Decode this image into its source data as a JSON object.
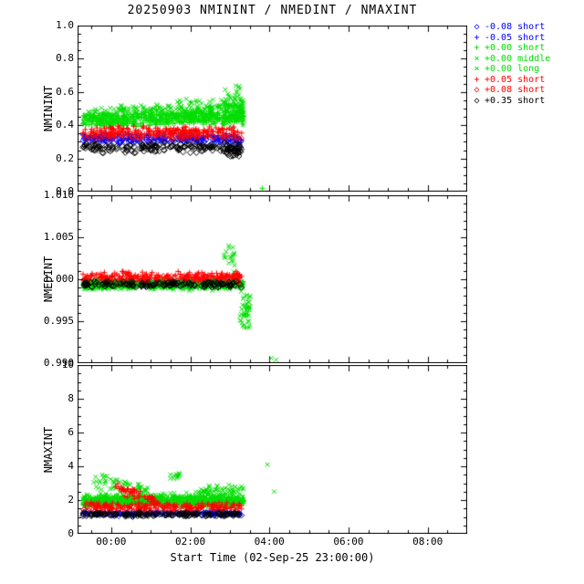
{
  "title": "20250903 NMININT / NMEDINT / NMAXINT",
  "xlabel": "Start Time (02-Sep-25 23:00:00)",
  "colors": {
    "blue": "#0000ff",
    "green": "#00dd00",
    "red": "#ff0000",
    "black": "#000000"
  },
  "series": [
    {
      "label": "-0.08 short",
      "color": "#0000ff",
      "marker": "diamond"
    },
    {
      "label": "-0.05 short",
      "color": "#0000ff",
      "marker": "plus"
    },
    {
      "label": "+0.00 short",
      "color": "#00dd00",
      "marker": "plus"
    },
    {
      "label": "+0.00 middle",
      "color": "#00dd00",
      "marker": "x"
    },
    {
      "label": "+0.00 long",
      "color": "#00dd00",
      "marker": "x"
    },
    {
      "label": "+0.05 short",
      "color": "#ff0000",
      "marker": "plus"
    },
    {
      "label": "+0.08 short",
      "color": "#ff0000",
      "marker": "diamond"
    },
    {
      "label": "+0.35 short",
      "color": "#000000",
      "marker": "diamond"
    }
  ],
  "xaxis": {
    "xlim": [
      -0.85,
      9.0
    ],
    "xminor_step": 0.5,
    "xticks": [
      {
        "v": 0,
        "label": "00:00"
      },
      {
        "v": 2,
        "label": "02:00"
      },
      {
        "v": 4,
        "label": "04:00"
      },
      {
        "v": 6,
        "label": "06:00"
      },
      {
        "v": 8,
        "label": "08:00"
      }
    ]
  },
  "chart_data": [
    {
      "type": "scatter",
      "ylabel": "NMININT",
      "ylim": [
        0.0,
        1.0
      ],
      "yminor_step": 0.05,
      "yticks": [
        {
          "v": 0.0,
          "label": "0.0"
        },
        {
          "v": 0.2,
          "label": "0.2"
        },
        {
          "v": 0.4,
          "label": "0.4"
        },
        {
          "v": 0.6,
          "label": "0.6"
        },
        {
          "v": 0.8,
          "label": "0.8"
        },
        {
          "v": 1.0,
          "label": "1.0"
        }
      ],
      "clusters": [
        {
          "s": 0,
          "n": 120,
          "x": [
            -0.72,
            3.3
          ],
          "y": [
            0.28,
            0.34
          ]
        },
        {
          "s": 1,
          "n": 140,
          "x": [
            -0.72,
            3.3
          ],
          "y": [
            0.3,
            0.36
          ]
        },
        {
          "s": 2,
          "n": 380,
          "x": [
            -0.72,
            3.35
          ],
          "y": [
            0.38,
            0.47
          ],
          "y2": [
            0.4,
            0.5
          ]
        },
        {
          "s": 3,
          "n": 260,
          "x": [
            -0.72,
            3.35
          ],
          "y": [
            0.38,
            0.51
          ],
          "y2": [
            0.42,
            0.57
          ]
        },
        {
          "s": 4,
          "n": 130,
          "x": [
            -0.72,
            3.35
          ],
          "y": [
            0.4,
            0.5
          ],
          "y2": [
            0.44,
            0.6
          ]
        },
        {
          "s": 3,
          "n": 60,
          "x": [
            2.85,
            3.38
          ],
          "y": [
            0.35,
            0.67
          ]
        },
        {
          "s": 5,
          "n": 170,
          "x": [
            -0.72,
            3.3
          ],
          "y": [
            0.33,
            0.4
          ]
        },
        {
          "s": 6,
          "n": 90,
          "x": [
            -0.72,
            3.3
          ],
          "y": [
            0.31,
            0.36
          ]
        },
        {
          "s": 7,
          "n": 170,
          "x": [
            -0.72,
            3.3
          ],
          "y": [
            0.23,
            0.3
          ]
        },
        {
          "s": 7,
          "n": 30,
          "x": [
            2.9,
            3.3
          ],
          "y": [
            0.2,
            0.28
          ]
        }
      ],
      "outliers": [
        {
          "s": 2,
          "x": 3.82,
          "y": 0.02
        }
      ]
    },
    {
      "type": "scatter",
      "ylabel": "NMEDINT",
      "ylim": [
        0.99,
        1.01
      ],
      "yminor_step": 0.001,
      "yticks": [
        {
          "v": 0.99,
          "label": "0.990"
        },
        {
          "v": 0.995,
          "label": "0.995"
        },
        {
          "v": 1.0,
          "label": "1.000"
        },
        {
          "v": 1.005,
          "label": "1.005"
        },
        {
          "v": 1.01,
          "label": "1.010"
        }
      ],
      "clusters": [
        {
          "s": 0,
          "n": 70,
          "x": [
            -0.72,
            3.3
          ],
          "y": [
            0.999,
            0.9998
          ]
        },
        {
          "s": 1,
          "n": 90,
          "x": [
            -0.72,
            3.3
          ],
          "y": [
            0.9992,
            1.0
          ]
        },
        {
          "s": 2,
          "n": 420,
          "x": [
            -0.72,
            3.35
          ],
          "y": [
            0.9988,
            1.0
          ]
        },
        {
          "s": 3,
          "n": 220,
          "x": [
            -0.72,
            3.35
          ],
          "y": [
            0.9985,
            1.0002
          ]
        },
        {
          "s": 4,
          "n": 100,
          "x": [
            -0.72,
            3.35
          ],
          "y": [
            0.9987,
            1.0
          ]
        },
        {
          "s": 3,
          "n": 18,
          "x": [
            2.85,
            3.12
          ],
          "y": [
            1.0,
            1.0045
          ]
        },
        {
          "s": 3,
          "n": 45,
          "x": [
            3.25,
            3.52
          ],
          "y": [
            0.9935,
            0.9988
          ]
        },
        {
          "s": 5,
          "n": 190,
          "x": [
            -0.72,
            3.3
          ],
          "y": [
            0.9996,
            1.001
          ]
        },
        {
          "s": 6,
          "n": 70,
          "x": [
            -0.72,
            3.3
          ],
          "y": [
            0.9995,
            1.0006
          ]
        },
        {
          "s": 7,
          "n": 150,
          "x": [
            -0.72,
            3.3
          ],
          "y": [
            0.999,
            0.9998
          ]
        }
      ],
      "outliers": [
        {
          "s": 4,
          "x": 4.05,
          "y": 0.9906
        },
        {
          "s": 4,
          "x": 4.17,
          "y": 0.9904
        }
      ]
    },
    {
      "type": "scatter",
      "ylabel": "NMAXINT",
      "ylim": [
        0,
        10
      ],
      "yminor_step": 0.5,
      "yticks": [
        {
          "v": 0,
          "label": "0"
        },
        {
          "v": 2,
          "label": "2"
        },
        {
          "v": 4,
          "label": "4"
        },
        {
          "v": 6,
          "label": "6"
        },
        {
          "v": 8,
          "label": "8"
        },
        {
          "v": 10,
          "label": "10"
        }
      ],
      "clusters": [
        {
          "s": 0,
          "n": 90,
          "x": [
            -0.72,
            3.3
          ],
          "y": [
            1.05,
            1.3
          ]
        },
        {
          "s": 1,
          "n": 110,
          "x": [
            -0.72,
            3.3
          ],
          "y": [
            1.1,
            1.35
          ]
        },
        {
          "s": 2,
          "n": 420,
          "x": [
            -0.72,
            3.35
          ],
          "y": [
            1.6,
            2.3
          ]
        },
        {
          "s": 3,
          "n": 220,
          "x": [
            -0.72,
            3.35
          ],
          "y": [
            1.5,
            2.5
          ]
        },
        {
          "s": 4,
          "n": 100,
          "x": [
            -0.72,
            3.35
          ],
          "y": [
            1.6,
            2.4
          ]
        },
        {
          "s": 3,
          "n": 55,
          "x": [
            -0.5,
            0.95
          ],
          "y": [
            2.5,
            3.9
          ],
          "y2": [
            2.2,
            3.0
          ]
        },
        {
          "s": 3,
          "n": 12,
          "x": [
            1.45,
            1.75
          ],
          "y": [
            3.2,
            3.7
          ]
        },
        {
          "s": 3,
          "n": 70,
          "x": [
            2.2,
            3.35
          ],
          "y": [
            2.0,
            3.0
          ]
        },
        {
          "s": 5,
          "n": 160,
          "x": [
            -0.72,
            3.3
          ],
          "y": [
            1.4,
            1.9
          ]
        },
        {
          "s": 5,
          "n": 55,
          "x": [
            0.1,
            1.2
          ],
          "y": [
            2.2,
            3.2
          ],
          "y2": [
            1.6,
            2.1
          ]
        },
        {
          "s": 6,
          "n": 60,
          "x": [
            -0.72,
            3.3
          ],
          "y": [
            1.25,
            1.6
          ]
        },
        {
          "s": 7,
          "n": 150,
          "x": [
            -0.72,
            3.3
          ],
          "y": [
            1.0,
            1.3
          ]
        }
      ],
      "outliers": [
        {
          "s": 4,
          "x": 3.95,
          "y": 4.1
        },
        {
          "s": 4,
          "x": 4.12,
          "y": 2.5
        }
      ]
    }
  ]
}
